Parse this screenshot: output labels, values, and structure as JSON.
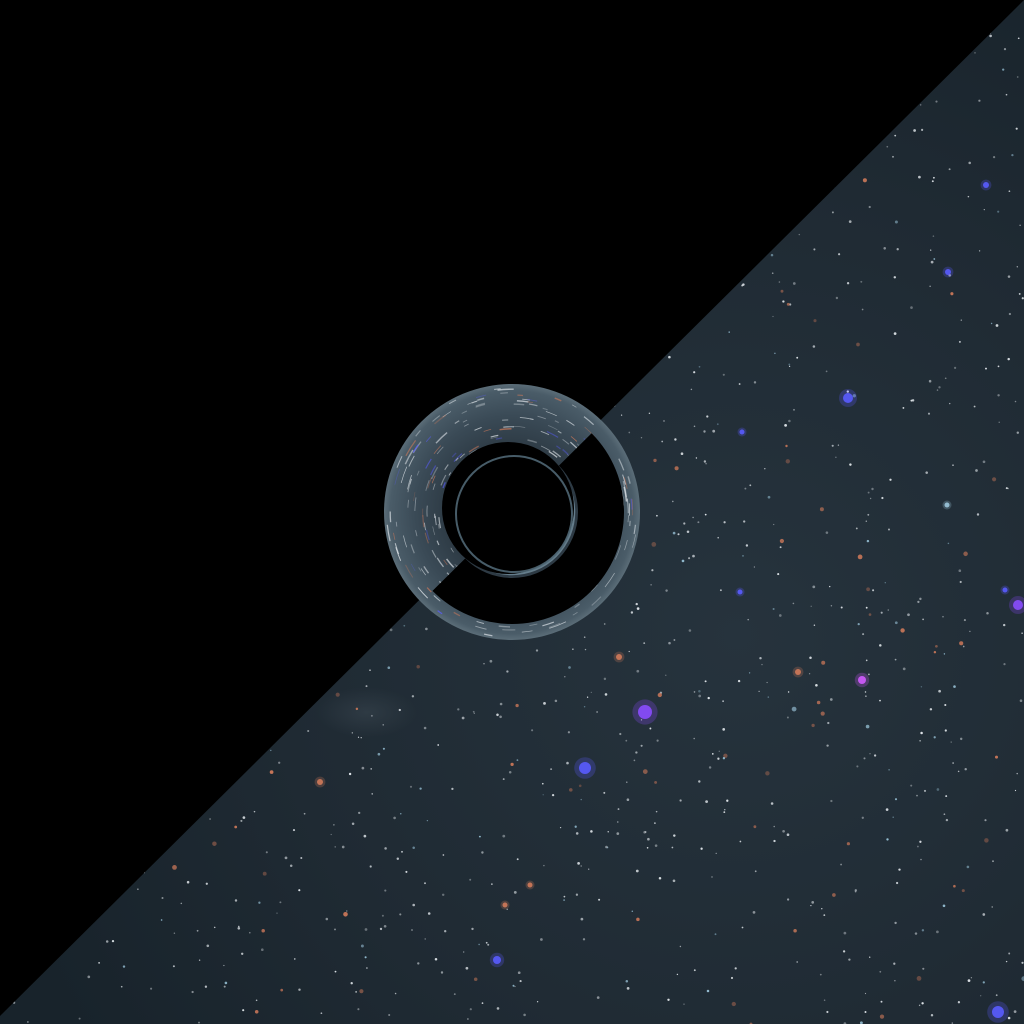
{
  "scene": {
    "description_colors": {
      "void": "#000000",
      "sky": "#1f2a33",
      "sky_deep": "#17222b",
      "ring": "#3a4a56",
      "ring_rim": "#5b6d78",
      "star_white": "#e9eef2",
      "star_blue": "#5a5cff",
      "star_violet": "#8a4dff",
      "star_magenta": "#d05cff",
      "star_orange": "#d07a5a",
      "star_cyan": "#9cc7dc"
    },
    "lens": {
      "shadow_color": "#000000",
      "photon_ring_color": "#6f8896"
    },
    "icons": {
      "black_hole": "black-hole-icon",
      "starfield": "starfield-icon"
    }
  }
}
